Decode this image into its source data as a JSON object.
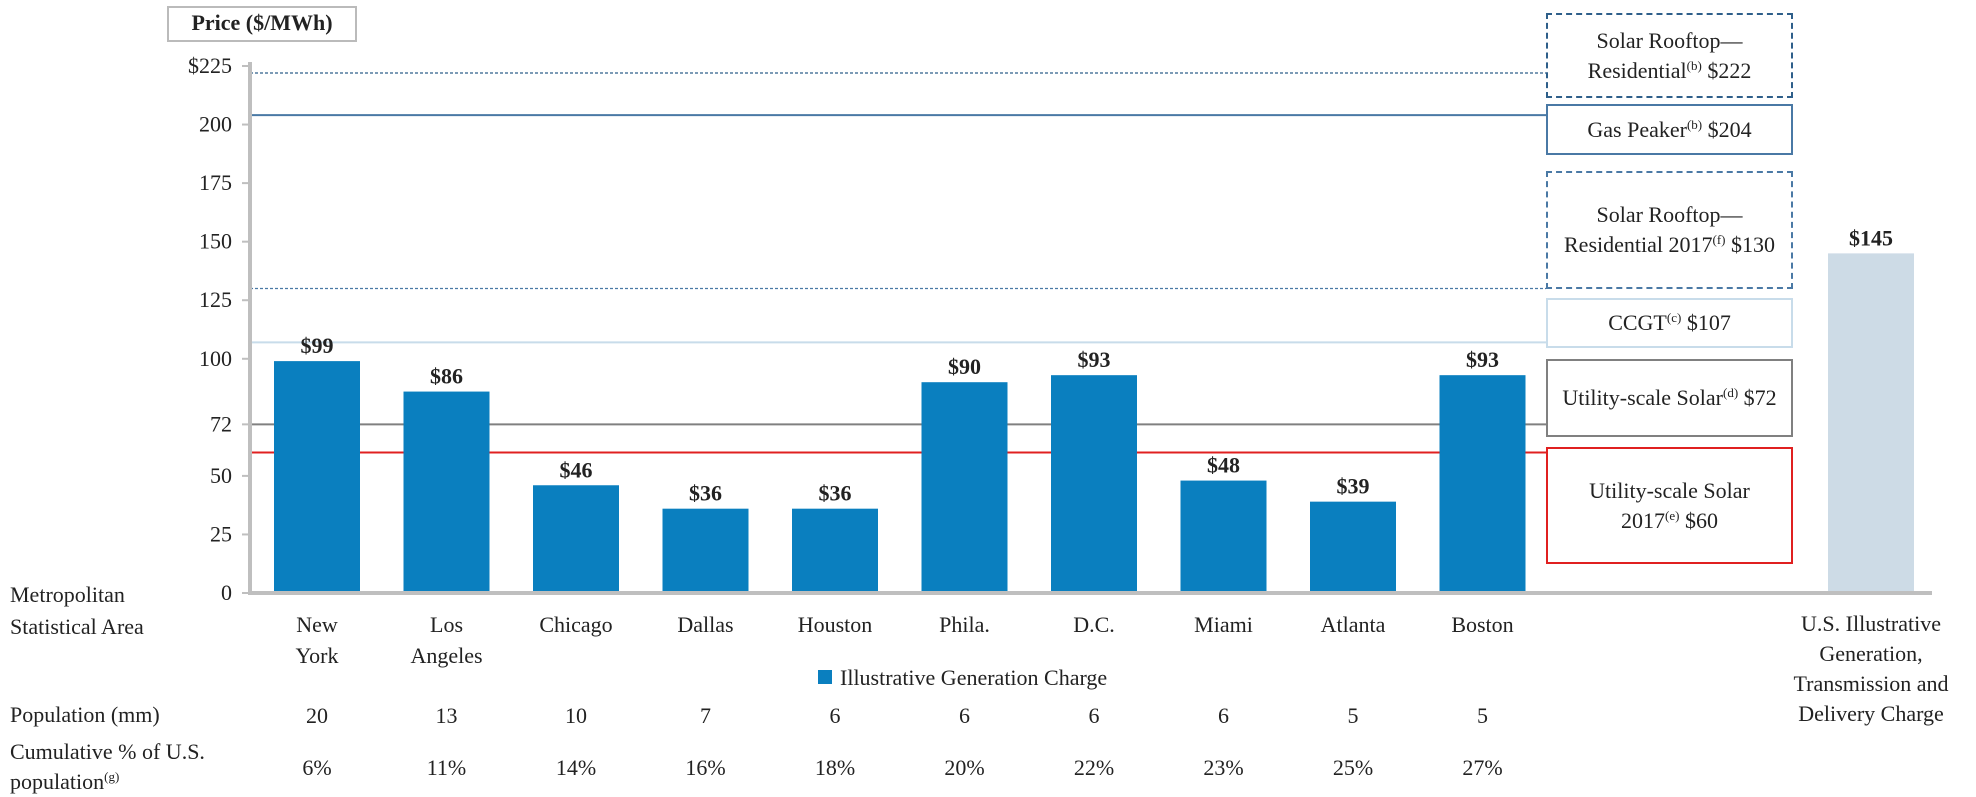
{
  "chart_data": {
    "type": "bar",
    "ylabel": "Price ($/MWh)",
    "ylim": [
      0,
      225
    ],
    "yticks": [
      0,
      25,
      50,
      72,
      100,
      125,
      150,
      175,
      200,
      {
        "value": 225,
        "label": "$225"
      }
    ],
    "category_heading": "Metropolitan Statistical Area",
    "categories": [
      "New York",
      "Los Angeles",
      "Chicago",
      "Dallas",
      "Houston",
      "Phila.",
      "D.C.",
      "Miami",
      "Atlanta",
      "Boston"
    ],
    "series": [
      {
        "name": "Illustrative Generation Charge",
        "color": "#0a7fbf",
        "values": [
          99,
          86,
          46,
          36,
          36,
          90,
          93,
          48,
          39,
          93
        ],
        "value_labels": [
          "$99",
          "$86",
          "$46",
          "$36",
          "$36",
          "$90",
          "$93",
          "$48",
          "$39",
          "$93"
        ]
      }
    ],
    "extra_bar": {
      "label": "U.S. Illustrative Generation, Transmission and Delivery Charge",
      "value": 145,
      "value_label": "$145",
      "color": "#cddbe6"
    },
    "reference_lines": [
      {
        "name": "Solar Rooftop—Residential",
        "note": "(b)",
        "value": 222,
        "value_label": "$222",
        "color": "#2e5f8a",
        "dashed": true
      },
      {
        "name": "Gas Peaker",
        "note": "(b)",
        "value": 204,
        "value_label": "$204",
        "color": "#4a79a5",
        "dashed": false
      },
      {
        "name": "Solar Rooftop—Residential 2017",
        "note": "(f)",
        "value": 130,
        "value_label": "$130",
        "color": "#4a79a5",
        "dashed": true
      },
      {
        "name": "CCGT",
        "note": "(c)",
        "value": 107,
        "value_label": "$107",
        "color": "#c8dcea",
        "dashed": false
      },
      {
        "name": "Utility-scale Solar",
        "note": "(d)",
        "value": 72,
        "value_label": "$72",
        "color": "#808080",
        "dashed": false
      },
      {
        "name": "Utility-scale Solar 2017",
        "note": "(e)",
        "value": 60,
        "value_label": "$60",
        "color": "#e02020",
        "dashed": false
      }
    ],
    "rows": [
      {
        "label": "Population (mm)",
        "values": [
          20,
          13,
          10,
          7,
          6,
          6,
          6,
          6,
          5,
          5
        ]
      },
      {
        "label": "Cumulative % of U.S. population",
        "note": "(g)",
        "values": [
          "6%",
          "11%",
          "14%",
          "16%",
          "18%",
          "20%",
          "22%",
          "23%",
          "25%",
          "27%"
        ]
      }
    ]
  }
}
